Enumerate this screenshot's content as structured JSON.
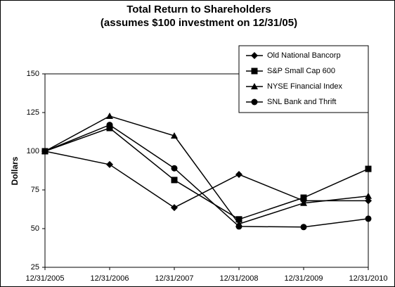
{
  "chart_data": {
    "type": "line",
    "title": "Total Return to Shareholders",
    "subtitle": "(assumes $100 investment on 12/31/05)",
    "y_label": "Dollars",
    "categories": [
      "12/31/2005",
      "12/31/2006",
      "12/31/2007",
      "12/31/2008",
      "12/31/2009",
      "12/31/2010"
    ],
    "series": [
      {
        "name": "Old National Bancorp",
        "color": "#000000",
        "marker": "diamond",
        "values": [
          100,
          91.4,
          63.6,
          85,
          68,
          68
        ]
      },
      {
        "name": "S&P Small Cap 600",
        "color": "#000000",
        "marker": "square",
        "values": [
          100,
          115,
          81.4,
          56,
          70,
          88.6
        ]
      },
      {
        "name": "NYSE Financial Index",
        "color": "#000000",
        "marker": "triangle",
        "values": [
          100,
          122.7,
          110,
          53,
          66.5,
          71
        ]
      },
      {
        "name": "SNL Bank and Thrift",
        "color": "#000000",
        "marker": "circle",
        "values": [
          100,
          117,
          89,
          51.4,
          51,
          56.4
        ]
      }
    ],
    "ylim": [
      25,
      150
    ],
    "yticks": [
      25,
      50,
      75,
      100,
      125,
      150
    ],
    "grid": false,
    "legend": "upper right"
  }
}
